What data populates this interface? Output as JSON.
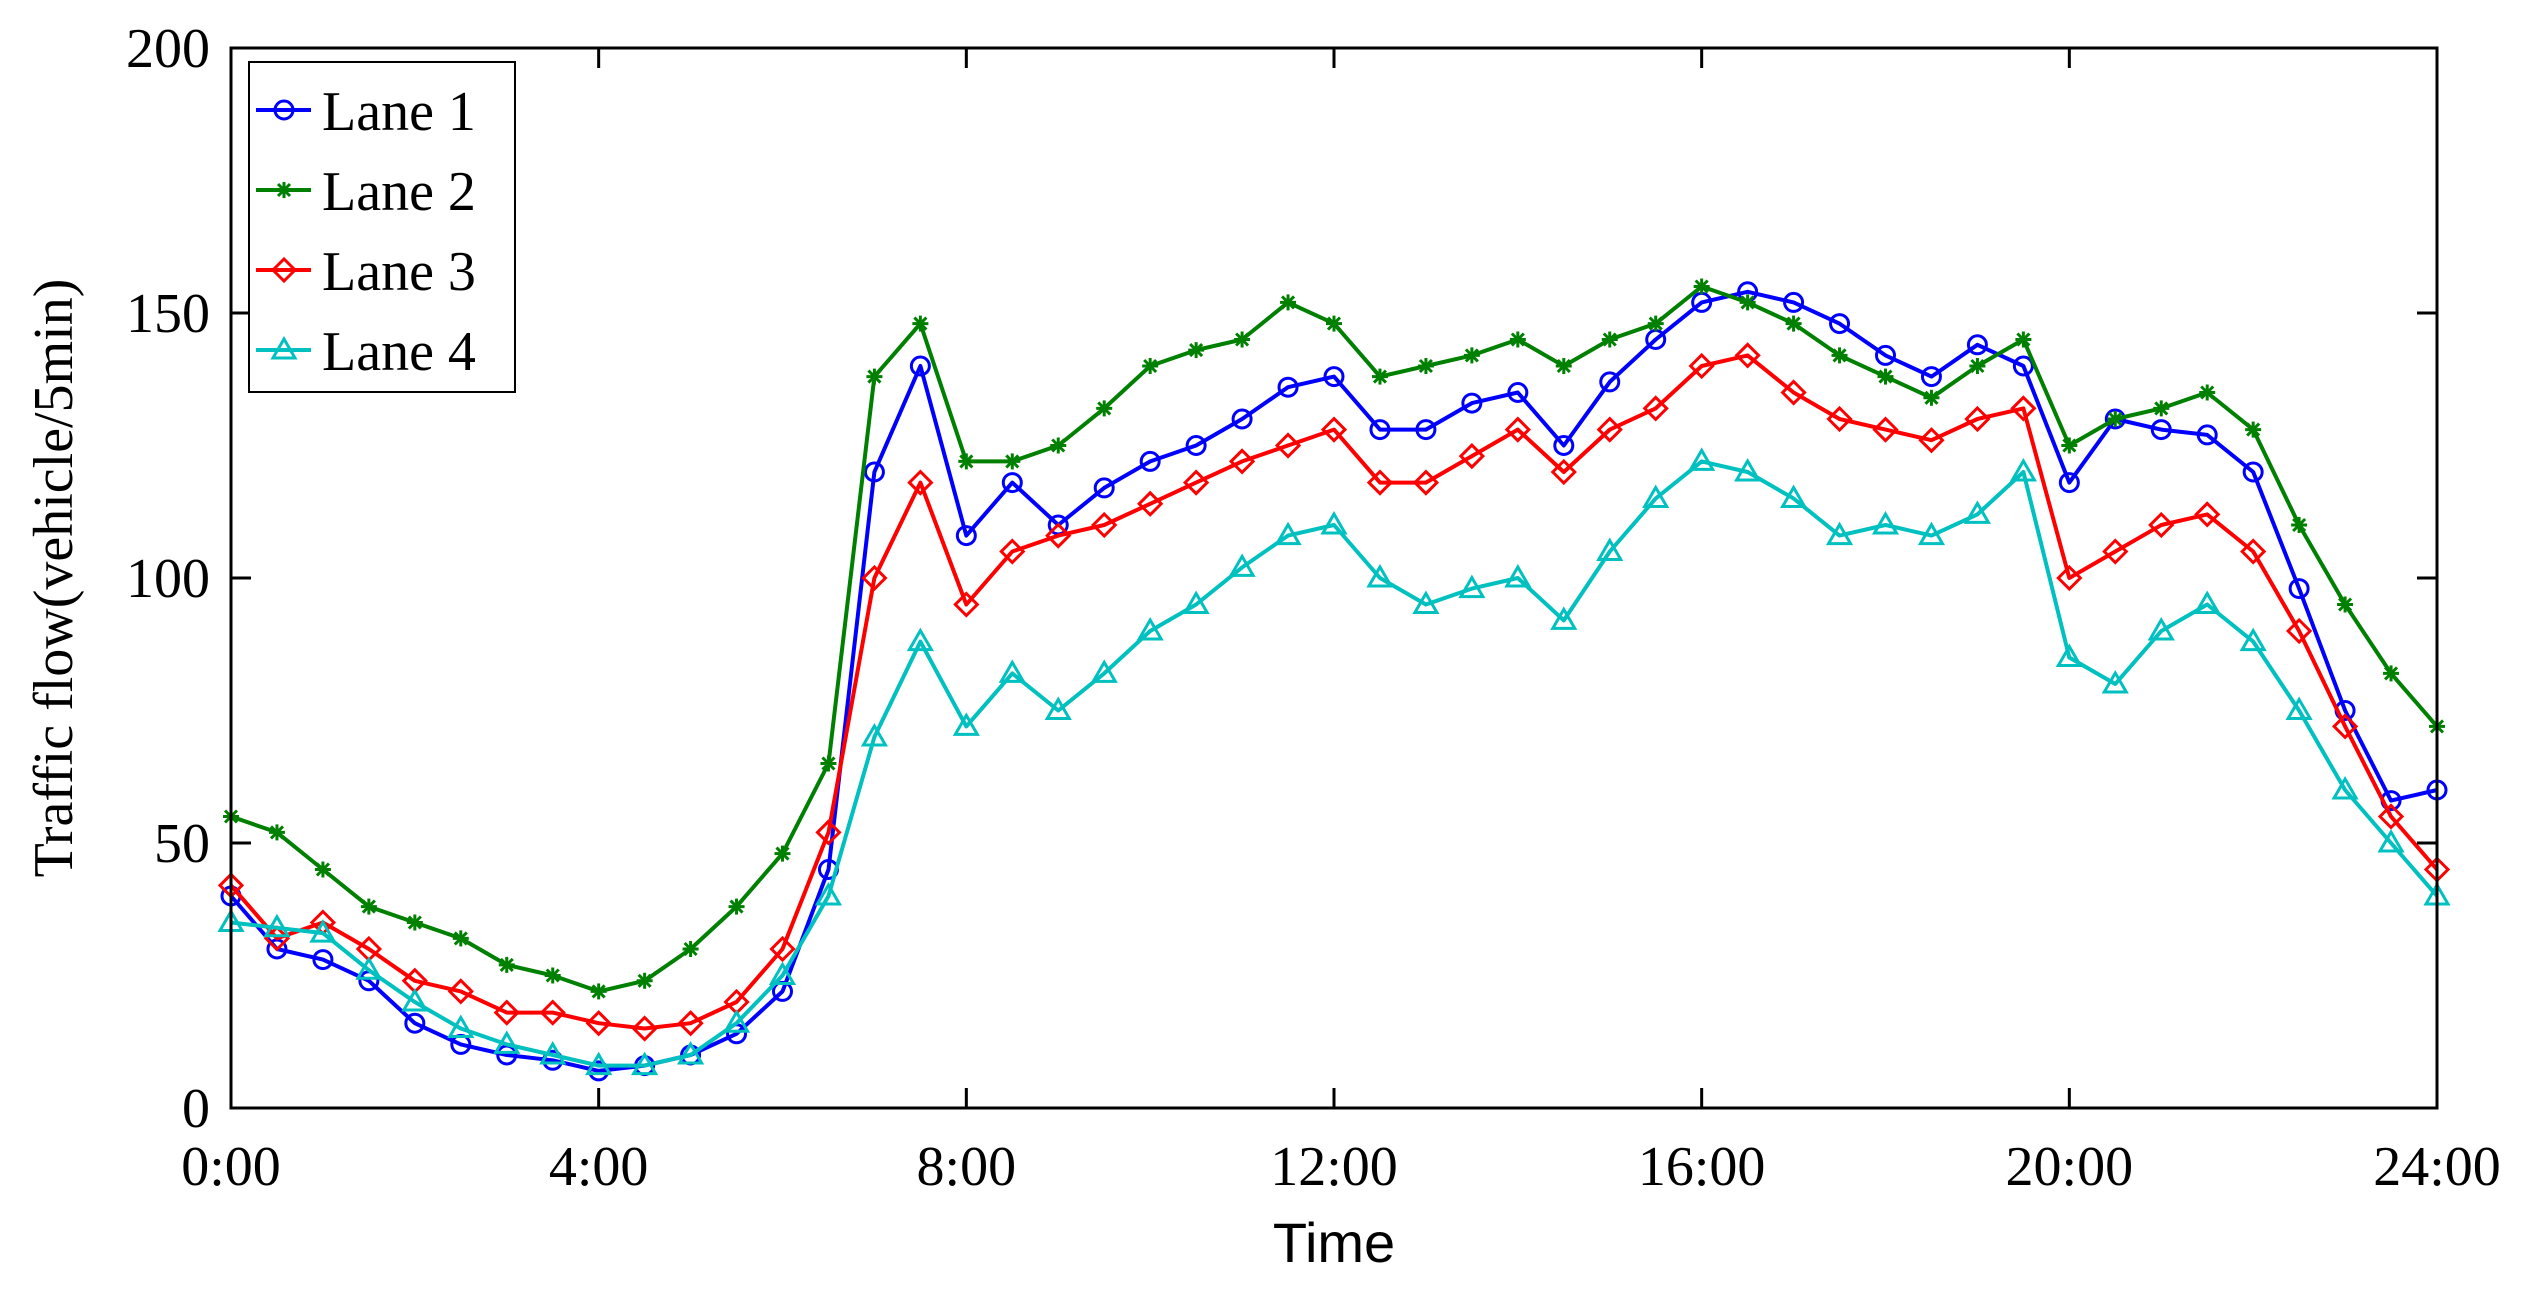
{
  "chart_data": {
    "type": "line",
    "title": "",
    "xlabel": "Time",
    "ylabel": "Traffic flow(vehicle/5min)",
    "xlim": [
      0,
      24
    ],
    "ylim": [
      0,
      200
    ],
    "x_ticks": [
      0,
      4,
      8,
      12,
      16,
      20,
      24
    ],
    "x_tick_labels": [
      "0:00",
      "4:00",
      "8:00",
      "12:00",
      "16:00",
      "20:00",
      "24:00"
    ],
    "y_ticks": [
      0,
      50,
      100,
      150,
      200
    ],
    "y_tick_labels": [
      "0",
      "50",
      "100",
      "150",
      "200"
    ],
    "x_unit": "hours",
    "legend_position": "top-left",
    "grid": false,
    "series": [
      {
        "name": "Lane 1",
        "color": "#0000ff",
        "marker": "circle",
        "x": [
          0,
          0.5,
          1,
          1.5,
          2,
          2.5,
          3,
          3.5,
          4,
          4.5,
          5,
          5.5,
          6,
          6.5,
          7,
          7.5,
          8,
          8.5,
          9,
          9.5,
          10,
          10.5,
          11,
          11.5,
          12,
          12.5,
          13,
          13.5,
          14,
          14.5,
          15,
          15.5,
          16,
          16.5,
          17,
          17.5,
          18,
          18.5,
          19,
          19.5,
          20,
          20.5,
          21,
          21.5,
          22,
          22.5,
          23,
          23.5,
          24
        ],
        "values": [
          40,
          30,
          28,
          24,
          16,
          12,
          10,
          9,
          7,
          8,
          10,
          14,
          22,
          45,
          120,
          140,
          108,
          118,
          110,
          117,
          122,
          125,
          130,
          136,
          138,
          128,
          128,
          133,
          135,
          125,
          137,
          145,
          152,
          154,
          152,
          148,
          142,
          138,
          144,
          140,
          118,
          130,
          128,
          127,
          120,
          98,
          75,
          58,
          60
        ]
      },
      {
        "name": "Lane 2",
        "color": "#008000",
        "marker": "asterisk",
        "x": [
          0,
          0.5,
          1,
          1.5,
          2,
          2.5,
          3,
          3.5,
          4,
          4.5,
          5,
          5.5,
          6,
          6.5,
          7,
          7.5,
          8,
          8.5,
          9,
          9.5,
          10,
          10.5,
          11,
          11.5,
          12,
          12.5,
          13,
          13.5,
          14,
          14.5,
          15,
          15.5,
          16,
          16.5,
          17,
          17.5,
          18,
          18.5,
          19,
          19.5,
          20,
          20.5,
          21,
          21.5,
          22,
          22.5,
          23,
          23.5,
          24
        ],
        "values": [
          55,
          52,
          45,
          38,
          35,
          32,
          27,
          25,
          22,
          24,
          30,
          38,
          48,
          65,
          138,
          148,
          122,
          122,
          125,
          132,
          140,
          143,
          145,
          152,
          148,
          138,
          140,
          142,
          145,
          140,
          145,
          148,
          155,
          152,
          148,
          142,
          138,
          134,
          140,
          145,
          125,
          130,
          132,
          135,
          128,
          110,
          95,
          82,
          72
        ]
      },
      {
        "name": "Lane 3",
        "color": "#ff0000",
        "marker": "diamond",
        "x": [
          0,
          0.5,
          1,
          1.5,
          2,
          2.5,
          3,
          3.5,
          4,
          4.5,
          5,
          5.5,
          6,
          6.5,
          7,
          7.5,
          8,
          8.5,
          9,
          9.5,
          10,
          10.5,
          11,
          11.5,
          12,
          12.5,
          13,
          13.5,
          14,
          14.5,
          15,
          15.5,
          16,
          16.5,
          17,
          17.5,
          18,
          18.5,
          19,
          19.5,
          20,
          20.5,
          21,
          21.5,
          22,
          22.5,
          23,
          23.5,
          24
        ],
        "values": [
          42,
          32,
          35,
          30,
          24,
          22,
          18,
          18,
          16,
          15,
          16,
          20,
          30,
          52,
          100,
          118,
          95,
          105,
          108,
          110,
          114,
          118,
          122,
          125,
          128,
          118,
          118,
          123,
          128,
          120,
          128,
          132,
          140,
          142,
          135,
          130,
          128,
          126,
          130,
          132,
          100,
          105,
          110,
          112,
          105,
          90,
          72,
          55,
          45
        ]
      },
      {
        "name": "Lane 4",
        "color": "#00c0c0",
        "marker": "triangle",
        "x": [
          0,
          0.5,
          1,
          1.5,
          2,
          2.5,
          3,
          3.5,
          4,
          4.5,
          5,
          5.5,
          6,
          6.5,
          7,
          7.5,
          8,
          8.5,
          9,
          9.5,
          10,
          10.5,
          11,
          11.5,
          12,
          12.5,
          13,
          13.5,
          14,
          14.5,
          15,
          15.5,
          16,
          16.5,
          17,
          17.5,
          18,
          18.5,
          19,
          19.5,
          20,
          20.5,
          21,
          21.5,
          22,
          22.5,
          23,
          23.5,
          24
        ],
        "values": [
          35,
          34,
          33,
          26,
          20,
          15,
          12,
          10,
          8,
          8,
          10,
          16,
          25,
          40,
          70,
          88,
          72,
          82,
          75,
          82,
          90,
          95,
          102,
          108,
          110,
          100,
          95,
          98,
          100,
          92,
          105,
          115,
          122,
          120,
          115,
          108,
          110,
          108,
          112,
          120,
          85,
          80,
          90,
          95,
          88,
          75,
          60,
          50,
          40
        ]
      }
    ]
  }
}
